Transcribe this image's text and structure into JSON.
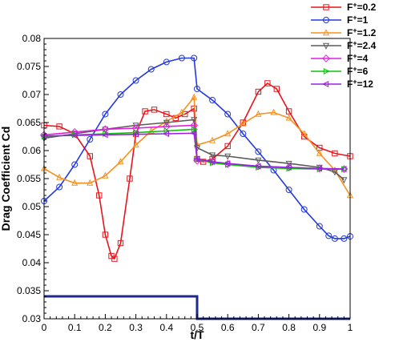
{
  "chart_data": {
    "type": "line",
    "title": "",
    "xlabel": "t/T",
    "ylabel": "Drag Coefficient Cd",
    "xlim": [
      0,
      1
    ],
    "ylim": [
      0.03,
      0.08
    ],
    "xticks": [
      "0",
      "0.1",
      "0.2",
      "0.3",
      "0.4",
      "0.5",
      "0.6",
      "0.7",
      "0.8",
      "0.9",
      "1"
    ],
    "yticks": [
      "0.03",
      "0.035",
      "0.04",
      "0.045",
      "0.05",
      "0.055",
      "0.06",
      "0.065",
      "0.07",
      "0.075",
      "0.08"
    ],
    "grid": false,
    "legend_position": "top-right-outside",
    "legend_labels": [
      {
        "base": "F",
        "sup": "+",
        "rest": "=0.2"
      },
      {
        "base": "F",
        "sup": "+",
        "rest": "=1"
      },
      {
        "base": "F",
        "sup": "+",
        "rest": "=1.2"
      },
      {
        "base": "F",
        "sup": "+",
        "rest": "=2.4"
      },
      {
        "base": "F",
        "sup": "+",
        "rest": "=4"
      },
      {
        "base": "F",
        "sup": "+",
        "rest": "=6"
      },
      {
        "base": "F",
        "sup": "+",
        "rest": "=12"
      }
    ],
    "series": [
      {
        "name": "F+=0.2",
        "color": "#e8141c",
        "marker": "square",
        "x": [
          0,
          0.05,
          0.1,
          0.15,
          0.18,
          0.2,
          0.22,
          0.23,
          0.25,
          0.28,
          0.3,
          0.33,
          0.36,
          0.4,
          0.43,
          0.46,
          0.49,
          0.5,
          0.52,
          0.55,
          0.6,
          0.65,
          0.7,
          0.73,
          0.76,
          0.8,
          0.85,
          0.9,
          0.95,
          1.0
        ],
        "y": [
          0.0645,
          0.0643,
          0.063,
          0.059,
          0.052,
          0.045,
          0.0412,
          0.0407,
          0.0435,
          0.055,
          0.063,
          0.067,
          0.0673,
          0.0665,
          0.0658,
          0.0665,
          0.0675,
          0.0585,
          0.058,
          0.0585,
          0.0608,
          0.065,
          0.0705,
          0.072,
          0.071,
          0.067,
          0.0625,
          0.0605,
          0.0595,
          0.059
        ]
      },
      {
        "name": "F+=1",
        "color": "#2238e0",
        "marker": "circle",
        "x": [
          0,
          0.05,
          0.1,
          0.15,
          0.2,
          0.25,
          0.3,
          0.35,
          0.4,
          0.45,
          0.49,
          0.5,
          0.55,
          0.6,
          0.65,
          0.7,
          0.75,
          0.8,
          0.85,
          0.9,
          0.93,
          0.95,
          0.98,
          1.0
        ],
        "y": [
          0.051,
          0.0535,
          0.0575,
          0.062,
          0.0665,
          0.07,
          0.0725,
          0.0745,
          0.0758,
          0.0765,
          0.0765,
          0.071,
          0.069,
          0.0665,
          0.063,
          0.0598,
          0.0565,
          0.053,
          0.0495,
          0.0465,
          0.0448,
          0.0443,
          0.0443,
          0.0447
        ]
      },
      {
        "name": "F+=1.2",
        "color": "#f7901e",
        "marker": "triangle",
        "x": [
          0,
          0.05,
          0.1,
          0.15,
          0.2,
          0.25,
          0.3,
          0.35,
          0.4,
          0.45,
          0.49,
          0.5,
          0.55,
          0.6,
          0.65,
          0.7,
          0.75,
          0.8,
          0.85,
          0.9,
          0.95,
          1.0
        ],
        "y": [
          0.0568,
          0.0552,
          0.0542,
          0.0542,
          0.0555,
          0.058,
          0.061,
          0.0635,
          0.0652,
          0.0668,
          0.0695,
          0.061,
          0.0618,
          0.063,
          0.0648,
          0.0665,
          0.0668,
          0.0658,
          0.063,
          0.0595,
          0.0565,
          0.052
        ]
      },
      {
        "name": "F+=2.4",
        "color": "#5a5a5a",
        "marker": "triangle-down",
        "x": [
          0,
          0.1,
          0.2,
          0.3,
          0.4,
          0.49,
          0.5,
          0.55,
          0.6,
          0.7,
          0.8,
          0.9,
          0.95,
          0.98
        ],
        "y": [
          0.0622,
          0.063,
          0.0638,
          0.0645,
          0.065,
          0.0655,
          0.0605,
          0.0592,
          0.059,
          0.0583,
          0.0577,
          0.057,
          0.0562,
          0.0548
        ]
      },
      {
        "name": "F+=4",
        "color": "#e020e0",
        "marker": "diamond",
        "x": [
          0,
          0.1,
          0.2,
          0.3,
          0.4,
          0.49,
          0.5,
          0.55,
          0.6,
          0.7,
          0.8,
          0.9,
          0.98
        ],
        "y": [
          0.0628,
          0.0633,
          0.0638,
          0.064,
          0.0643,
          0.0645,
          0.0582,
          0.058,
          0.0576,
          0.0572,
          0.057,
          0.0568,
          0.0567
        ]
      },
      {
        "name": "F+=6",
        "color": "#10c010",
        "marker": "triangle-right",
        "x": [
          0,
          0.1,
          0.2,
          0.3,
          0.4,
          0.49,
          0.5,
          0.55,
          0.6,
          0.7,
          0.8,
          0.9,
          0.98
        ],
        "y": [
          0.0625,
          0.0628,
          0.063,
          0.0632,
          0.0635,
          0.0638,
          0.0585,
          0.0578,
          0.0575,
          0.057,
          0.0568,
          0.0567,
          0.0567
        ]
      },
      {
        "name": "F+=12",
        "color": "#9a20e0",
        "marker": "triangle-left",
        "x": [
          0,
          0.1,
          0.2,
          0.3,
          0.4,
          0.49,
          0.5,
          0.55,
          0.6,
          0.7,
          0.8,
          0.9,
          0.98
        ],
        "y": [
          0.0626,
          0.0627,
          0.0628,
          0.0629,
          0.063,
          0.0631,
          0.0585,
          0.058,
          0.0577,
          0.0572,
          0.057,
          0.0568,
          0.0567
        ]
      }
    ],
    "control_signal": {
      "color": "#1e2a8c",
      "x": [
        0,
        0.5,
        0.5,
        1.0
      ],
      "y": [
        0.034,
        0.034,
        0.03,
        0.03
      ]
    }
  }
}
